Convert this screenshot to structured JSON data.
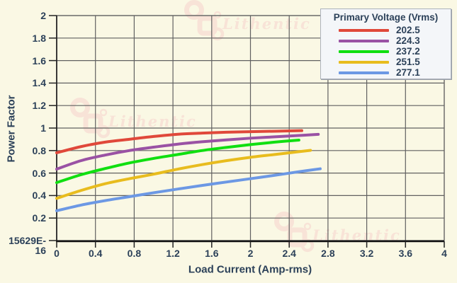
{
  "watermark": {
    "text": "Lithentic",
    "color": "#F8E3D7"
  },
  "colors": {
    "background": "#FAF8E4",
    "grid": "#616161",
    "axis_text": "#2C4159",
    "x_axis_line": "#101010",
    "y_axis_line": "#2A2A2A",
    "tick": "#222222",
    "legend_bg": "#F4F6F9",
    "legend_border": "#ADB3BD"
  },
  "chart_data": {
    "type": "line",
    "title": "",
    "xlabel": "Load Current (Amp-rms)",
    "ylabel": "Power Factor",
    "xlim": [
      0,
      4
    ],
    "ylim": [
      0,
      2
    ],
    "grid": true,
    "x_ticks": [
      0,
      0.4,
      0.8,
      1.2,
      1.6,
      2,
      2.4,
      2.8,
      3.2,
      3.6,
      4
    ],
    "x_tick_labels": [
      "0",
      "0.4",
      "0.8",
      "1.2",
      "1.6",
      "2",
      "2.4",
      "2.8",
      "3.2",
      "3.6",
      "4"
    ],
    "y_ticks": [
      2,
      1.8,
      1.6,
      1.4,
      1.2,
      1,
      0.8,
      0.6,
      0.4,
      0.2,
      0
    ],
    "y_tick_labels": [
      "2",
      "1.8",
      "1.6",
      "1.4",
      "1.2",
      "1",
      "0.8",
      "0.6",
      "0.4",
      "0.2",
      "15629E-16"
    ],
    "legend": {
      "title": "Primary Voltage (Vrms)",
      "position": "top-right"
    },
    "series": [
      {
        "name": "202.5",
        "color": "#E0483A",
        "x": [
          0,
          0.25,
          0.5,
          0.75,
          1,
          1.25,
          1.5,
          1.75,
          2,
          2.25,
          2.53
        ],
        "y": [
          0.78,
          0.835,
          0.875,
          0.9,
          0.925,
          0.945,
          0.955,
          0.963,
          0.968,
          0.972,
          0.977
        ]
      },
      {
        "name": "224.3",
        "color": "#9A52A4",
        "x": [
          0,
          0.25,
          0.5,
          0.75,
          1,
          1.25,
          1.5,
          1.75,
          2,
          2.25,
          2.5,
          2.7
        ],
        "y": [
          0.635,
          0.71,
          0.76,
          0.8,
          0.83,
          0.857,
          0.878,
          0.895,
          0.91,
          0.922,
          0.934,
          0.944
        ]
      },
      {
        "name": "237.2",
        "color": "#10DF10",
        "x": [
          0,
          0.25,
          0.5,
          0.75,
          1,
          1.25,
          1.5,
          1.75,
          2,
          2.25,
          2.5
        ],
        "y": [
          0.515,
          0.585,
          0.64,
          0.69,
          0.73,
          0.765,
          0.8,
          0.828,
          0.853,
          0.875,
          0.893
        ]
      },
      {
        "name": "251.5",
        "color": "#E8BC1E",
        "x": [
          0,
          0.25,
          0.5,
          0.75,
          1,
          1.25,
          1.5,
          1.75,
          2,
          2.25,
          2.5,
          2.62
        ],
        "y": [
          0.375,
          0.445,
          0.505,
          0.55,
          0.59,
          0.635,
          0.675,
          0.71,
          0.74,
          0.765,
          0.79,
          0.802
        ]
      },
      {
        "name": "277.1",
        "color": "#6C98E4",
        "x": [
          0,
          0.25,
          0.5,
          0.75,
          1,
          1.25,
          1.5,
          1.75,
          2,
          2.25,
          2.5,
          2.72
        ],
        "y": [
          0.265,
          0.315,
          0.355,
          0.39,
          0.425,
          0.458,
          0.49,
          0.52,
          0.55,
          0.58,
          0.612,
          0.638
        ]
      }
    ]
  }
}
